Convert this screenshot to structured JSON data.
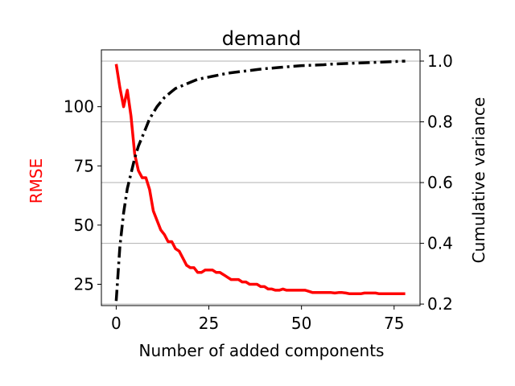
{
  "chart_data": {
    "type": "line",
    "title": "demand",
    "xlabel": "Number of added components",
    "ylabel_left": "RMSE",
    "ylabel_right": "Cumulative variance",
    "xlim": [
      -4,
      82
    ],
    "ylim_left": [
      16,
      124
    ],
    "ylim_right": [
      0.195,
      1.037
    ],
    "x_ticks": [
      0,
      25,
      50,
      75
    ],
    "y_left_ticks": [
      25,
      50,
      75,
      100
    ],
    "y_right_ticks": [
      0.2,
      0.4,
      0.6,
      0.8,
      1.0
    ],
    "y_right_tick_labels": [
      "0.2",
      "0.4",
      "0.6",
      "0.8",
      "1.0"
    ],
    "grid": "horizontal lines on right axis ticks",
    "colors": {
      "rmse": "#ff0000",
      "cumulative_variance": "#000000",
      "grid": "#b0b0b0"
    },
    "series": [
      {
        "axis": "left",
        "style": "solid",
        "color": "#ff0000",
        "x": [
          0,
          1,
          2,
          3,
          4,
          5,
          6,
          7,
          8,
          9,
          10,
          11,
          12,
          13,
          14,
          15,
          16,
          17,
          18,
          19,
          20,
          21,
          22,
          23,
          24,
          25,
          26,
          27,
          28,
          29,
          30,
          31,
          32,
          33,
          34,
          35,
          36,
          37,
          38,
          39,
          40,
          41,
          42,
          43,
          44,
          45,
          46,
          47,
          48,
          49,
          50,
          51,
          52,
          53,
          54,
          55,
          56,
          57,
          58,
          59,
          60,
          61,
          62,
          63,
          64,
          65,
          66,
          67,
          68,
          69,
          70,
          71,
          72,
          73,
          74,
          75,
          76,
          77,
          78
        ],
        "values": [
          118,
          108,
          100,
          107,
          96,
          80,
          73,
          70,
          70,
          65,
          56,
          52,
          48,
          46,
          43,
          43,
          40,
          39,
          36,
          33,
          32,
          32,
          30,
          30,
          31,
          31,
          31,
          30,
          30,
          29,
          28,
          27,
          27,
          27,
          26,
          26,
          25,
          25,
          25,
          24,
          24,
          23,
          23,
          22.5,
          22.5,
          23,
          22.5,
          22.5,
          22.5,
          22.5,
          22.5,
          22.5,
          22,
          21.5,
          21.5,
          21.5,
          21.5,
          21.5,
          21.5,
          21.3,
          21.5,
          21.5,
          21.3,
          21,
          21,
          21,
          21,
          21.3,
          21.3,
          21.3,
          21.3,
          21,
          21,
          21,
          21,
          21,
          21,
          21,
          21
        ]
      },
      {
        "axis": "right",
        "style": "dashdot",
        "color": "#000000",
        "x": [
          0,
          1,
          2,
          3,
          4,
          5,
          6,
          7,
          8,
          9,
          10,
          11,
          12,
          13,
          14,
          15,
          16,
          17,
          18,
          19,
          20,
          22,
          24,
          26,
          28,
          30,
          32,
          34,
          36,
          38,
          40,
          42,
          44,
          46,
          48,
          50,
          52,
          54,
          56,
          58,
          60,
          62,
          64,
          66,
          68,
          70,
          72,
          74,
          76,
          78
        ],
        "values": [
          0.21,
          0.39,
          0.5,
          0.58,
          0.63,
          0.68,
          0.72,
          0.75,
          0.78,
          0.81,
          0.83,
          0.85,
          0.865,
          0.88,
          0.89,
          0.9,
          0.91,
          0.915,
          0.92,
          0.925,
          0.93,
          0.94,
          0.945,
          0.95,
          0.955,
          0.96,
          0.963,
          0.966,
          0.969,
          0.972,
          0.975,
          0.977,
          0.979,
          0.981,
          0.983,
          0.985,
          0.986,
          0.987,
          0.988,
          0.99,
          0.991,
          0.992,
          0.993,
          0.994,
          0.995,
          0.996,
          0.997,
          0.998,
          0.999,
          1.0
        ]
      }
    ]
  }
}
